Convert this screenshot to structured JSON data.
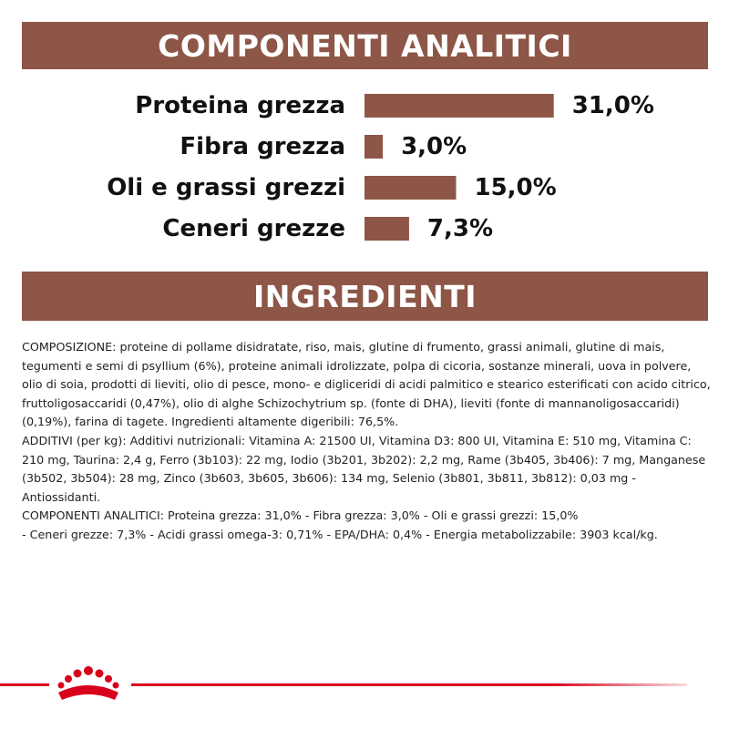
{
  "header_analytics": "COMPONENTI ANALITICI",
  "header_ingredients": "INGREDIENTI",
  "colors": {
    "banner": "#8d5647",
    "bar": "#8d5647",
    "brand_red": "#d9001b"
  },
  "chart_data": {
    "type": "bar",
    "orientation": "horizontal",
    "categories": [
      "Proteina grezza",
      "Fibra grezza",
      "Oli e grassi grezzi",
      "Ceneri grezze"
    ],
    "values": [
      31.0,
      3.0,
      15.0,
      7.3
    ],
    "value_labels": [
      "31,0%",
      "3,0%",
      "15,0%",
      "7,3%"
    ],
    "title": "COMPONENTI ANALITICI",
    "xlabel": "",
    "ylabel": "",
    "grid": false
  },
  "ingredients": {
    "composizione": "COMPOSIZIONE: proteine di pollame disidratate, riso, mais, glutine di frumento, grassi animali, glutine di mais, tegumenti e semi di psyllium (6%), proteine animali idrolizzate, polpa di cicoria, sostanze minerali, uova in polvere, olio di soia, prodotti di lieviti, olio di pesce, mono- e digliceridi di acidi palmitico e stearico esterificati con acido citrico, fruttoligosaccaridi (0,47%), olio di alghe Schizochytrium sp. (fonte di DHA), lieviti (fonte di mannanoligosaccaridi) (0,19%), farina di tagete. Ingredienti altamente digeribili: 76,5%.",
    "additivi": "ADDITIVI (per kg): Additivi nutrizionali: Vitamina A: 21500 UI, Vitamina D3: 800 UI, Vitamina E: 510 mg, Vitamina C: 210 mg, Taurina: 2,4 g, Ferro (3b103): 22 mg, Iodio (3b201, 3b202): 2,2 mg, Rame (3b405, 3b406): 7 mg, Manganese (3b502, 3b504): 28 mg, Zinco (3b603, 3b605, 3b606): 134 mg, Selenio (3b801, 3b811, 3b812): 0,03 mg - Antiossidanti.",
    "componenti_line1": "COMPONENTI ANALITICI: Proteina grezza: 31,0% - Fibra grezza: 3,0% - Oli e grassi grezzi: 15,0%",
    "componenti_line2": "- Ceneri grezze: 7,3% - Acidi grassi omega-3: 0,71% - EPA/DHA: 0,4% - Energia metabolizzabile: 3903 kcal/kg."
  },
  "footer": {
    "logo_icon": "crown-icon"
  }
}
